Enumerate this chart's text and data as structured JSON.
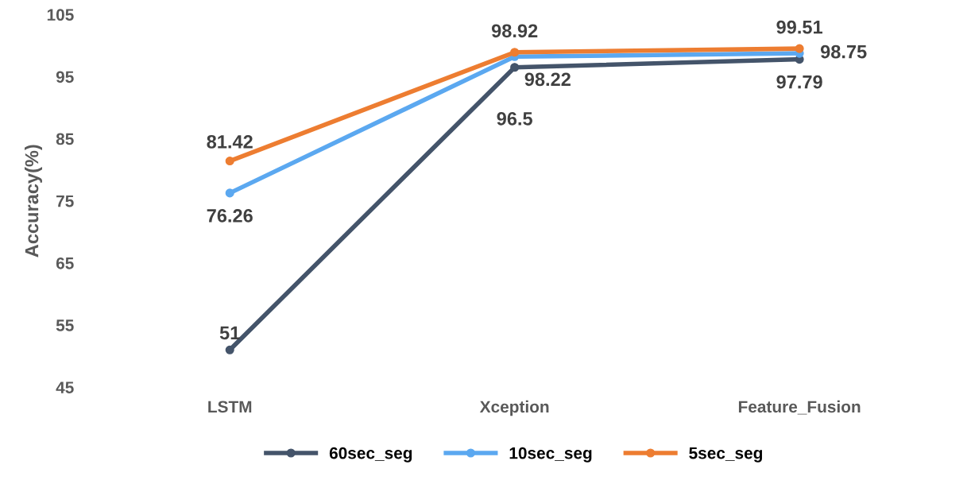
{
  "chart_data": {
    "type": "line",
    "ylabel": "Accuracy(%)",
    "categories": [
      "LSTM",
      "Xception",
      "Feature_Fusion"
    ],
    "series": [
      {
        "name": "60sec_seg",
        "color": "#44546a",
        "values": [
          51,
          96.5,
          97.79
        ]
      },
      {
        "name": "10sec_seg",
        "color": "#5ba8f0",
        "values": [
          76.26,
          98.22,
          98.75
        ]
      },
      {
        "name": "5sec_seg",
        "color": "#ed7d31",
        "values": [
          81.42,
          98.92,
          99.51
        ]
      }
    ],
    "ylim": [
      45,
      105
    ],
    "yticks": [
      45,
      55,
      65,
      75,
      85,
      95,
      105
    ],
    "grid": false,
    "legend": "bottom",
    "marker": "circle",
    "line_style": "solid",
    "data_labels": true
  }
}
